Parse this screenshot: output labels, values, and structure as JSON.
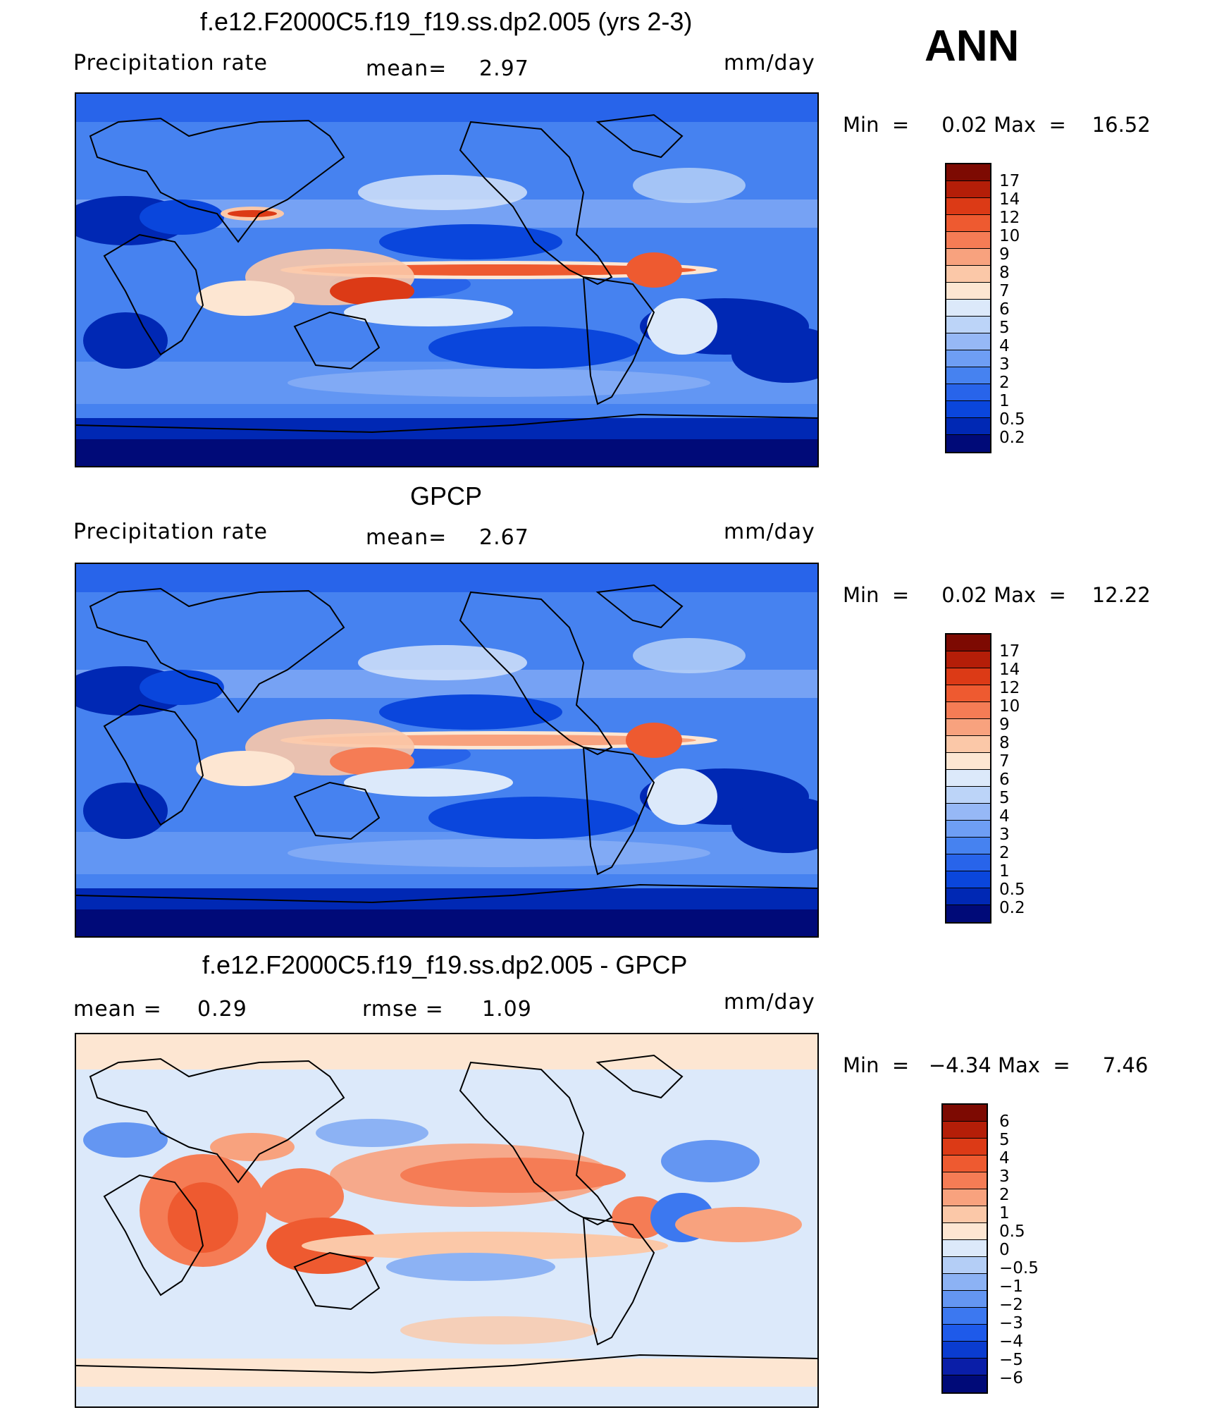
{
  "season": "ANN",
  "colors": {
    "precip_levels": [
      "#000a78",
      "#0028b4",
      "#0a46dc",
      "#2864ea",
      "#4682f0",
      "#6e9ef4",
      "#96b8f6",
      "#bcd4f8",
      "#dce9fa",
      "#fde6d2",
      "#fbc8a8",
      "#f8a27e",
      "#f57c55",
      "#ee5a30",
      "#dc3a16",
      "#b41e08",
      "#7d0a02"
    ],
    "diff_levels": [
      "#000a78",
      "#0a1ea8",
      "#0a3cd0",
      "#1e5aea",
      "#3c78f0",
      "#6496f2",
      "#8cb2f4",
      "#b4cef6",
      "#dce9fa",
      "#fde6d2",
      "#fbc8a8",
      "#f8a27e",
      "#f57c55",
      "#ee5a30",
      "#dc3a16",
      "#b41e08",
      "#7d0a02"
    ],
    "coastline": "#000000"
  },
  "panels": [
    {
      "title": "f.e12.F2000C5.f19_f19.ss.dp2.005 (yrs 2-3)",
      "left_label": "Precipitation  rate",
      "mid_label": "mean=",
      "mid_value": "2.97",
      "right_label": "mm/day",
      "min_label": "Min  =",
      "min_value": "0.02",
      "max_label": "Max  =",
      "max_value": "16.52",
      "colorbar_labels": [
        "17",
        "14",
        "12",
        "10",
        "9",
        "8",
        "7",
        "6",
        "5",
        "4",
        "3",
        "2",
        "1",
        "0.5",
        "0.2"
      ]
    },
    {
      "title": "GPCP",
      "left_label": "Precipitation  rate",
      "mid_label": "mean=",
      "mid_value": "2.67",
      "right_label": "mm/day",
      "min_label": "Min  =",
      "min_value": "0.02",
      "max_label": "Max  =",
      "max_value": "12.22",
      "colorbar_labels": [
        "17",
        "14",
        "12",
        "10",
        "9",
        "8",
        "7",
        "6",
        "5",
        "4",
        "3",
        "2",
        "1",
        "0.5",
        "0.2"
      ]
    },
    {
      "title": "f.e12.F2000C5.f19_f19.ss.dp2.005 - GPCP",
      "left_label": "mean  =",
      "left_value": "0.29",
      "mid_label": "rmse  =",
      "mid_value": "1.09",
      "right_label": "mm/day",
      "min_label": "Min  =",
      "min_value": "−4.34",
      "max_label": "Max  =",
      "max_value": "7.46",
      "colorbar_labels": [
        "6",
        "5",
        "4",
        "3",
        "2",
        "1",
        "0.5",
        "0",
        "−0.5",
        "−1",
        "−2",
        "−3",
        "−4",
        "−5",
        "−6"
      ]
    }
  ]
}
